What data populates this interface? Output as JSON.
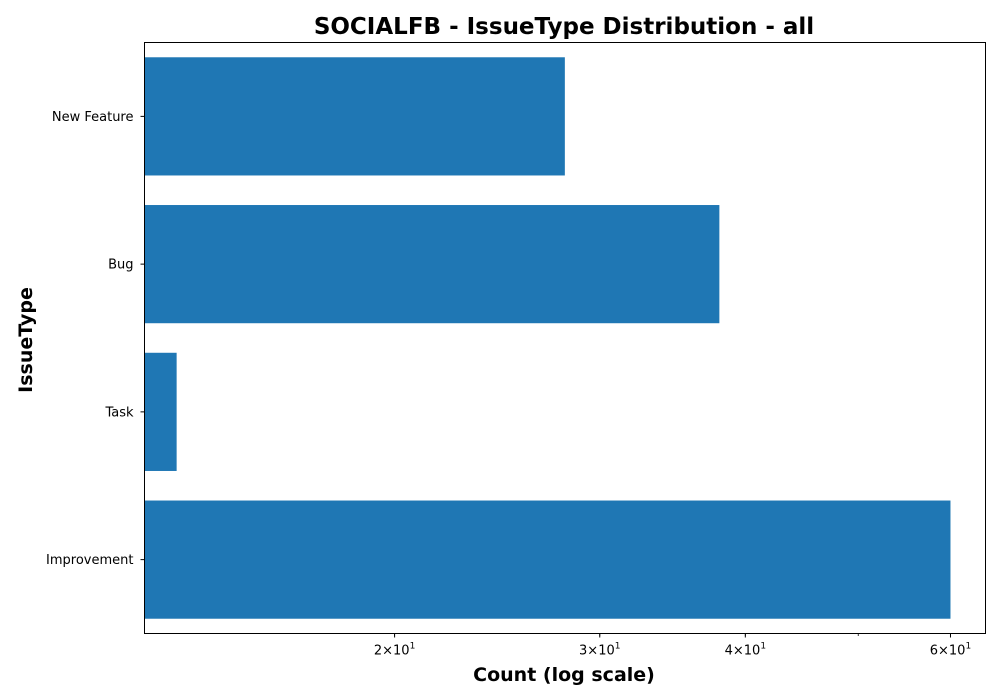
{
  "chart_data": {
    "type": "bar",
    "orientation": "horizontal",
    "title": "SOCIALFB - IssueType Distribution - all",
    "xlabel": "Count (log scale)",
    "ylabel": "IssueType",
    "x_scale": "log",
    "xlim": [
      12.2,
      64.3
    ],
    "x_ticks": [
      {
        "value": 20,
        "mantissa": "2",
        "base": "10",
        "exp": "1"
      },
      {
        "value": 30,
        "mantissa": "3",
        "base": "10",
        "exp": "1"
      },
      {
        "value": 40,
        "mantissa": "4",
        "base": "10",
        "exp": "1"
      },
      {
        "value": 60,
        "mantissa": "6",
        "base": "10",
        "exp": "1"
      }
    ],
    "categories": [
      "New Feature",
      "Bug",
      "Task",
      "Improvement"
    ],
    "values": [
      28,
      38,
      13,
      60
    ],
    "bar_color": "#1f77b4",
    "grid": false,
    "legend": "none"
  }
}
